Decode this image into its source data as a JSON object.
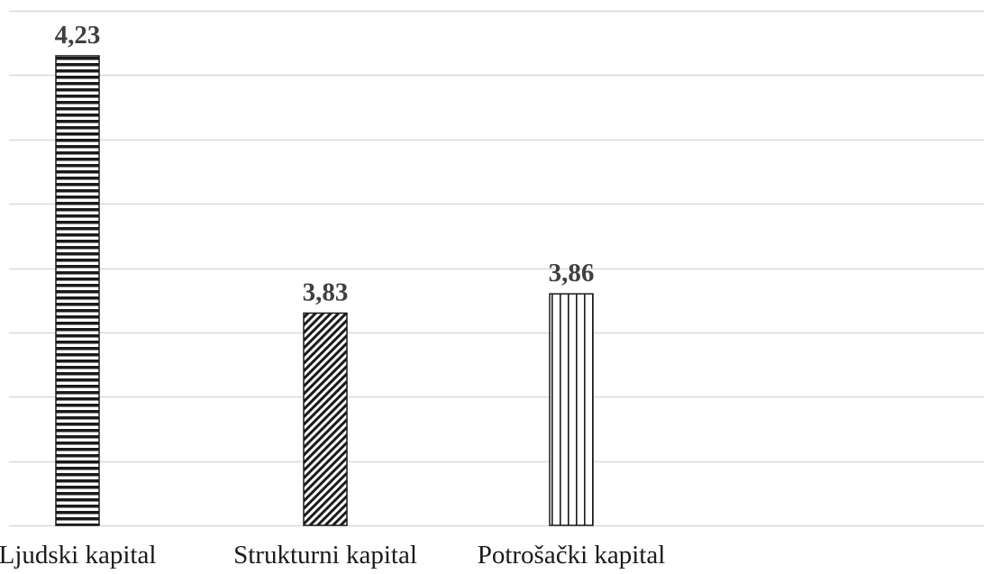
{
  "chart_data": {
    "type": "bar",
    "title": "",
    "xlabel": "",
    "ylabel": "",
    "categories": [
      "Ljudski kapital",
      "Strukturni kapital",
      "Potrošački kapital"
    ],
    "values": [
      4.23,
      3.83,
      3.86
    ],
    "data_labels": [
      "4,23",
      "3,83",
      "3,86"
    ],
    "ylim": [
      3.5,
      4.3
    ],
    "gridline_step": 0.1,
    "grid": true,
    "legend": "none",
    "bar_patterns": [
      "horizontal-lines",
      "diagonal-lines",
      "vertical-lines"
    ],
    "colors": {
      "bar_stroke": "#1a1a1a",
      "bar_fill": "#ffffff",
      "grid": "#d9d9d9",
      "data_label": "#404040",
      "tick_label": "#1a1a1a"
    }
  }
}
